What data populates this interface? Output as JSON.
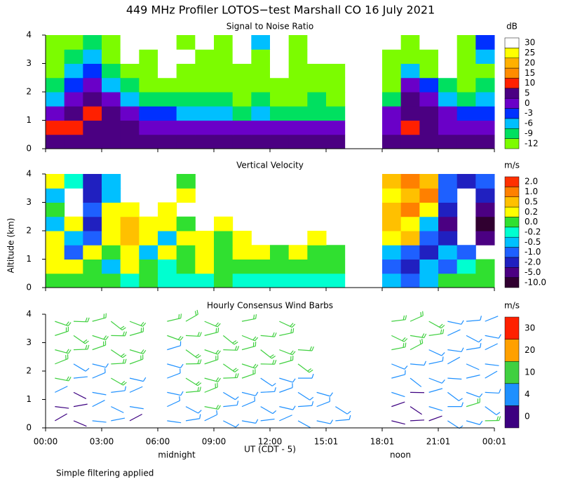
{
  "chart_data": {
    "type": "heatmap",
    "title": "449 MHz Profiler LOTOS−test Marshall CO 16 July 2021",
    "y_label": "Altitude (km)",
    "x_label": "UT  (CDT - 5)",
    "annotations": [
      "midnight",
      "noon"
    ],
    "footnote": "Simple filtering applied",
    "xlim": [
      0,
      24
    ],
    "xticks": [
      {
        "value": 0,
        "label": "00:00"
      },
      {
        "value": 3,
        "label": "03:00"
      },
      {
        "value": 6,
        "label": "06:00"
      },
      {
        "value": 9,
        "label": "09:00"
      },
      {
        "value": 12,
        "label": "12:00"
      },
      {
        "value": 15,
        "label": "15:01"
      },
      {
        "value": 18,
        "label": "18:01"
      },
      {
        "value": 21,
        "label": "21:01"
      },
      {
        "value": 24,
        "label": "00:01"
      }
    ],
    "ylim": [
      0,
      4
    ],
    "yticks": [
      0,
      1,
      2,
      3,
      4
    ],
    "times": [
      0.5,
      1.5,
      2.5,
      3.5,
      4.5,
      5.5,
      6.5,
      7.5,
      8.5,
      9.5,
      10.5,
      11.5,
      12.5,
      13.5,
      14.5,
      15.5,
      16.5,
      17.5,
      18.5,
      19.5,
      20.5,
      21.5,
      22.5,
      23.5
    ],
    "altitudes": [
      0.25,
      0.75,
      1.25,
      1.75,
      2.25,
      2.75,
      3.25,
      3.75
    ],
    "panels": [
      {
        "type": "heatmap",
        "title": "Signal to Noise Ratio",
        "unit": "dB",
        "levels": [
          -12,
          -9,
          -6,
          -3,
          0,
          5,
          10,
          15,
          20,
          25,
          30
        ],
        "colors": [
          "#7cfc00",
          "#00e060",
          "#00bfff",
          "#0030ff",
          "#6a00c8",
          "#4b0082",
          "#ff2000",
          "#ff8c00",
          "#ffb000",
          "#ffff00",
          "#ffffff"
        ],
        "values": [
          [
            5,
            5,
            5,
            5,
            5,
            5,
            5,
            5,
            5,
            5,
            5,
            5,
            5,
            5,
            5,
            5,
            null,
            null,
            5,
            5,
            5,
            5,
            5,
            5
          ],
          [
            10,
            12,
            8,
            5,
            5,
            3,
            3,
            3,
            3,
            3,
            3,
            3,
            3,
            3,
            3,
            3,
            null,
            null,
            3,
            10,
            5,
            3,
            3,
            3
          ],
          [
            0,
            5,
            10,
            5,
            0,
            -3,
            -3,
            -6,
            -6,
            -6,
            -9,
            -6,
            -9,
            -9,
            -9,
            -9,
            null,
            null,
            0,
            5,
            5,
            0,
            -3,
            -3
          ],
          [
            -6,
            0,
            5,
            0,
            -6,
            -9,
            -9,
            -9,
            -9,
            -9,
            -12,
            -9,
            -12,
            -12,
            -9,
            -12,
            null,
            null,
            -9,
            5,
            0,
            -6,
            -9,
            -6
          ],
          [
            -9,
            -3,
            0,
            -6,
            -9,
            -12,
            -12,
            -12,
            -12,
            -12,
            -12,
            -12,
            -12,
            -12,
            -12,
            -12,
            null,
            null,
            -12,
            0,
            -3,
            -9,
            -12,
            -9
          ],
          [
            -12,
            -6,
            -3,
            -9,
            -12,
            -12,
            30,
            -12,
            -12,
            -12,
            -12,
            -12,
            30,
            -12,
            -12,
            -12,
            null,
            null,
            -12,
            -6,
            -12,
            30,
            -12,
            -12
          ],
          [
            -12,
            -9,
            -6,
            -12,
            30,
            -12,
            30,
            30,
            -12,
            -12,
            30,
            -12,
            30,
            -12,
            30,
            30,
            null,
            null,
            -12,
            -12,
            -12,
            30,
            -12,
            -6
          ],
          [
            -12,
            -12,
            -9,
            -12,
            30,
            30,
            30,
            -12,
            30,
            -12,
            30,
            -6,
            30,
            -12,
            30,
            30,
            null,
            null,
            30,
            -12,
            30,
            30,
            -12,
            -3
          ]
        ]
      },
      {
        "type": "heatmap",
        "title": "Vertical Velocity",
        "unit": "m/s",
        "levels": [
          {
            "value": -10,
            "label": "-10.0"
          },
          {
            "value": -5,
            "label": "-5.0"
          },
          {
            "value": -2,
            "label": "-2.0"
          },
          {
            "value": -1,
            "label": "-1.0"
          },
          {
            "value": -0.5,
            "label": "-0.5"
          },
          {
            "value": -0.2,
            "label": "-0.2"
          },
          {
            "value": 0,
            "label": "0.0"
          },
          {
            "value": 0.2,
            "label": "0.2"
          },
          {
            "value": 0.5,
            "label": "0.5"
          },
          {
            "value": 1,
            "label": "1.0"
          },
          {
            "value": 2,
            "label": "2.0"
          }
        ],
        "colors": [
          "#300030",
          "#4b0082",
          "#2020c0",
          "#1e60ff",
          "#00c0ff",
          "#00ffd0",
          "#30e030",
          "#ffff00",
          "#ffc000",
          "#ff8000",
          "#ff3000"
        ],
        "values": [
          [
            0.1,
            0.1,
            0,
            0.1,
            -0.1,
            0,
            -0.1,
            -0.1,
            -0.1,
            0,
            -0.1,
            -0.1,
            -0.1,
            -0.1,
            -0.1,
            -0.1,
            null,
            null,
            -0.3,
            -0.7,
            -0.3,
            0,
            0.1,
            0.1
          ],
          [
            0.3,
            0.3,
            0,
            -0.3,
            0.3,
            0.1,
            -0.1,
            0.1,
            0.3,
            0.1,
            0,
            0.1,
            0,
            0.1,
            0.1,
            0,
            null,
            null,
            -0.7,
            -1.5,
            -0.3,
            -0.7,
            -0.1,
            0.1
          ],
          [
            0.3,
            -0.7,
            0.3,
            0.1,
            0.3,
            -0.3,
            0.3,
            0.1,
            0.3,
            0.1,
            0.3,
            0.3,
            0.1,
            0.3,
            0.1,
            0.1,
            null,
            null,
            -0.3,
            -0.7,
            -1.5,
            -0.3,
            -0.7,
            null
          ],
          [
            0.3,
            -0.3,
            -0.7,
            0.3,
            0.7,
            0.3,
            -0.3,
            0.3,
            0.3,
            0.1,
            0.3,
            null,
            null,
            null,
            0.3,
            null,
            null,
            null,
            0.3,
            0.7,
            -0.7,
            -1.5,
            null,
            -3
          ],
          [
            -0.3,
            0.3,
            -1.5,
            0.3,
            0.7,
            0.3,
            0.3,
            0.1,
            null,
            0.3,
            null,
            null,
            null,
            null,
            null,
            null,
            null,
            null,
            0.7,
            0.3,
            -0.3,
            -3,
            null,
            -7
          ],
          [
            0.1,
            null,
            -0.7,
            0.3,
            0.3,
            null,
            0.3,
            null,
            null,
            null,
            null,
            null,
            null,
            null,
            null,
            null,
            null,
            null,
            0.7,
            1.5,
            0.3,
            -1.5,
            null,
            -3
          ],
          [
            -0.3,
            null,
            -1.5,
            -0.3,
            null,
            null,
            null,
            0.3,
            null,
            null,
            null,
            null,
            null,
            null,
            null,
            null,
            null,
            null,
            0.3,
            0.7,
            1.5,
            -0.7,
            null,
            -1.5
          ],
          [
            0.3,
            -0.1,
            -1.5,
            -0.3,
            null,
            null,
            null,
            0.1,
            null,
            null,
            null,
            null,
            null,
            null,
            null,
            null,
            null,
            null,
            0.7,
            1.5,
            0.7,
            -0.7,
            -1.5,
            -0.7
          ]
        ]
      },
      {
        "type": "barbs",
        "title": "Hourly Consensus Wind Barbs",
        "unit": "m/s",
        "levels": [
          0,
          4,
          10,
          20,
          30
        ],
        "colors": [
          "#3c0080",
          "#1e90ff",
          "#40d040",
          "#ffa000",
          "#ff2000"
        ],
        "values": [
          [
            2,
            2,
            4,
            4,
            2,
            null,
            4,
            6,
            8,
            8,
            6,
            4,
            4,
            4,
            6,
            6,
            null,
            null,
            2,
            2,
            2,
            6,
            8,
            10
          ],
          [
            2,
            2,
            4,
            4,
            4,
            null,
            6,
            8,
            10,
            8,
            6,
            6,
            6,
            6,
            6,
            8,
            null,
            null,
            2,
            2,
            4,
            8,
            10,
            8
          ],
          [
            4,
            2,
            4,
            6,
            4,
            null,
            6,
            10,
            10,
            8,
            8,
            6,
            8,
            6,
            8,
            null,
            null,
            null,
            4,
            2,
            4,
            6,
            6,
            6
          ],
          [
            10,
            4,
            6,
            10,
            8,
            null,
            6,
            12,
            12,
            10,
            10,
            8,
            8,
            8,
            null,
            null,
            null,
            null,
            6,
            4,
            6,
            4,
            4,
            4
          ],
          [
            12,
            6,
            8,
            12,
            10,
            null,
            8,
            12,
            12,
            10,
            10,
            10,
            10,
            10,
            null,
            null,
            null,
            null,
            8,
            6,
            6,
            4,
            4,
            4
          ],
          [
            12,
            10,
            10,
            12,
            12,
            null,
            8,
            12,
            12,
            12,
            10,
            10,
            10,
            10,
            null,
            null,
            null,
            null,
            10,
            10,
            6,
            6,
            6,
            4
          ],
          [
            12,
            12,
            12,
            12,
            12,
            null,
            10,
            12,
            12,
            12,
            10,
            12,
            10,
            null,
            null,
            null,
            null,
            null,
            12,
            12,
            10,
            4,
            6,
            6
          ],
          [
            14,
            12,
            14,
            14,
            14,
            null,
            12,
            10,
            12,
            null,
            10,
            null,
            10,
            null,
            null,
            null,
            null,
            null,
            12,
            14,
            12,
            6,
            6,
            4
          ]
        ]
      }
    ]
  }
}
